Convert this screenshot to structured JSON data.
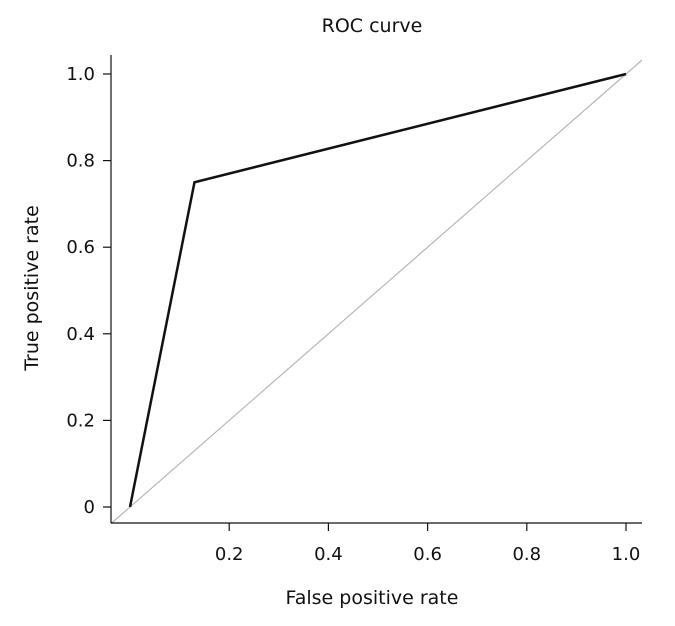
{
  "chart_data": {
    "type": "line",
    "title": "ROC curve",
    "xlabel": "False positive rate",
    "ylabel": "True positive rate",
    "xlim": [
      -0.04,
      1.04
    ],
    "ylim": [
      -0.04,
      1.0
    ],
    "x_ticks": [
      0.2,
      0.4,
      0.6,
      0.8,
      1.0
    ],
    "x_tick_labels": [
      "0.2",
      "0.4",
      "0.6",
      "0.8",
      "1.0"
    ],
    "y_ticks": [
      0,
      0.2,
      0.4,
      0.6,
      0.8,
      1.0
    ],
    "y_tick_labels": [
      "0",
      "0.2",
      "0.4",
      "0.6",
      "0.8",
      "1.0"
    ],
    "grid": false,
    "series": [
      {
        "x": [
          0.0,
          0.13,
          1.0
        ],
        "y": [
          0.0,
          0.75,
          1.0
        ],
        "color": "#111111"
      },
      {
        "x": [
          -0.04,
          1.04
        ],
        "y": [
          -0.04,
          1.04
        ],
        "color": "#b5b5b5"
      }
    ]
  }
}
